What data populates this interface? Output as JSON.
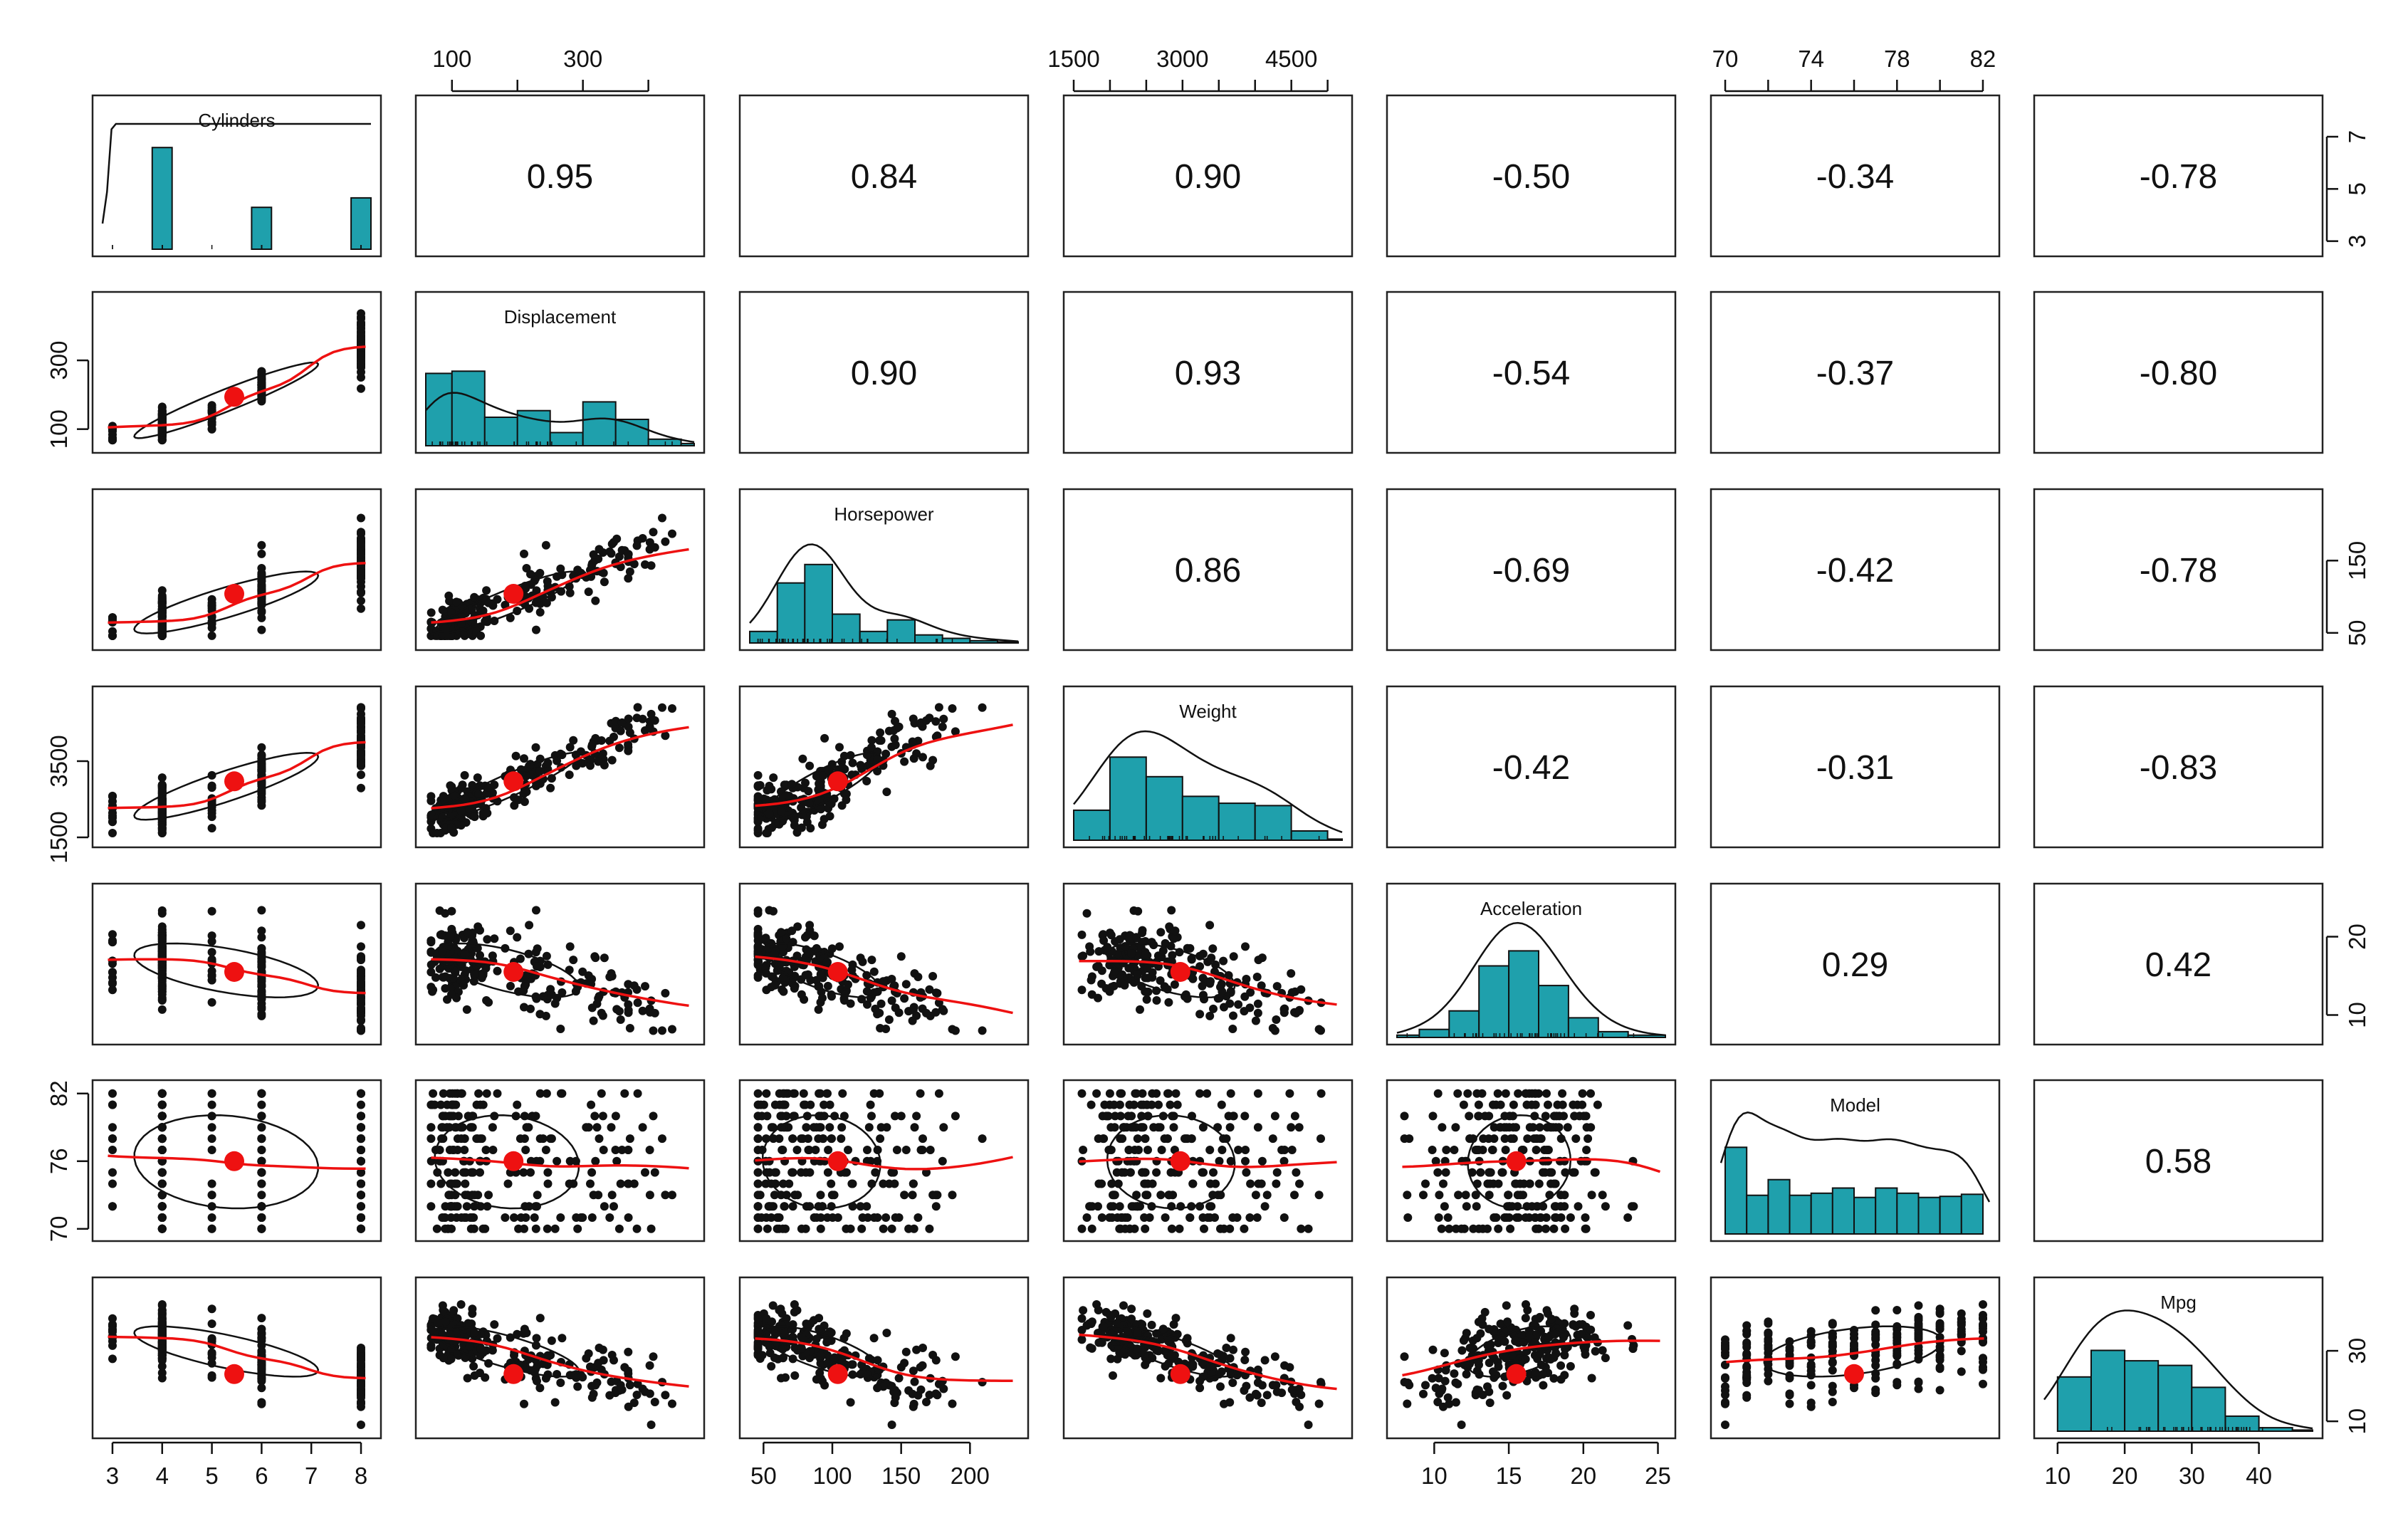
{
  "title": "",
  "colors": {
    "hist_fill": "#1fa0ac",
    "points": "#111111",
    "smooth": "#ee1111",
    "center": "#ee1111",
    "panel_border": "#222222"
  },
  "chart_data": {
    "type": "scatter",
    "variables": [
      "Cylinders",
      "Displacement",
      "Horsepower",
      "Weight",
      "Acceleration",
      "Model",
      "Mpg"
    ],
    "ranges": [
      [
        2.8,
        8.2
      ],
      [
        60,
        470
      ],
      [
        40,
        235
      ],
      [
        1500,
        5200
      ],
      [
        7.5,
        25.5
      ],
      [
        69.8,
        82.3
      ],
      [
        8,
        48
      ]
    ],
    "means": [
      5.45,
      194,
      104,
      2970,
      15.5,
      76.0,
      23.4
    ],
    "correlations": [
      [
        "",
        "0.95",
        "0.84",
        "0.90",
        "-0.50",
        "-0.34",
        "-0.78"
      ],
      [
        "",
        "",
        "0.90",
        "0.93",
        "-0.54",
        "-0.37",
        "-0.80"
      ],
      [
        "",
        "",
        "",
        "0.86",
        "-0.69",
        "-0.42",
        "-0.78"
      ],
      [
        "",
        "",
        "",
        "",
        "-0.42",
        "-0.31",
        "-0.83"
      ],
      [
        "",
        "",
        "",
        "",
        "",
        "0.29",
        "0.42"
      ],
      [
        "",
        "",
        "",
        "",
        "",
        "",
        "0.58"
      ],
      [
        "",
        "",
        "",
        "",
        "",
        "",
        ""
      ]
    ],
    "axes": {
      "top": [
        {
          "column": 1,
          "ticks": [
            100,
            300
          ],
          "minor": [
            100,
            200,
            300,
            400
          ]
        },
        {
          "column": 3,
          "ticks": [
            1500,
            3000,
            4500
          ],
          "minor": [
            1500,
            2000,
            2500,
            3000,
            3500,
            4000,
            4500,
            5000
          ]
        },
        {
          "column": 5,
          "ticks": [
            70,
            74,
            78,
            82
          ],
          "minor": [
            70,
            72,
            74,
            76,
            78,
            80,
            82
          ]
        }
      ],
      "bottom": [
        {
          "column": 0,
          "ticks": [
            3,
            4,
            5,
            6,
            7,
            8
          ]
        },
        {
          "column": 2,
          "ticks": [
            50,
            100,
            150,
            200
          ]
        },
        {
          "column": 4,
          "ticks": [
            10,
            15,
            20,
            25
          ]
        },
        {
          "column": 6,
          "ticks": [
            10,
            20,
            30,
            40
          ]
        }
      ],
      "left": [
        {
          "row": 1,
          "ticks": [
            100,
            300
          ]
        },
        {
          "row": 3,
          "ticks": [
            1500,
            3500
          ]
        },
        {
          "row": 5,
          "ticks": [
            70,
            76,
            82
          ]
        }
      ],
      "right": [
        {
          "row": 0,
          "ticks": [
            3,
            5,
            7
          ]
        },
        {
          "row": 2,
          "ticks": [
            50,
            150
          ]
        },
        {
          "row": 4,
          "ticks": [
            10,
            20
          ]
        },
        {
          "row": 6,
          "ticks": [
            10,
            30
          ]
        }
      ]
    },
    "histograms": [
      {
        "variable": "Cylinders",
        "bins": [
          [
            3.8,
            4.2,
            204
          ],
          [
            5.8,
            6.2,
            84
          ],
          [
            7.8,
            8.2,
            103
          ]
        ],
        "count_max": 220,
        "density_max": 3.2
      },
      {
        "variable": "Displacement",
        "bins": [
          [
            60,
            100,
            0.33
          ],
          [
            100,
            150,
            0.34
          ],
          [
            150,
            200,
            0.13
          ],
          [
            200,
            250,
            0.16
          ],
          [
            250,
            300,
            0.06
          ],
          [
            300,
            350,
            0.2
          ],
          [
            350,
            400,
            0.12
          ],
          [
            400,
            450,
            0.03
          ],
          [
            450,
            470,
            0.01
          ]
        ],
        "count_max": 0.5,
        "density_max": 1.2
      },
      {
        "variable": "Horsepower",
        "bins": [
          [
            40,
            60,
            0.1
          ],
          [
            60,
            80,
            0.52
          ],
          [
            80,
            100,
            0.68
          ],
          [
            100,
            120,
            0.25
          ],
          [
            120,
            140,
            0.1
          ],
          [
            140,
            160,
            0.2
          ],
          [
            160,
            180,
            0.07
          ],
          [
            180,
            200,
            0.04
          ],
          [
            200,
            220,
            0.02
          ],
          [
            220,
            235,
            0.01
          ]
        ],
        "count_max": 0.95,
        "density_max": 1.2
      },
      {
        "variable": "Weight",
        "bins": [
          [
            1500,
            2000,
            0.26
          ],
          [
            2000,
            2500,
            0.72
          ],
          [
            2500,
            3000,
            0.55
          ],
          [
            3000,
            3500,
            0.38
          ],
          [
            3500,
            4000,
            0.32
          ],
          [
            4000,
            4500,
            0.3
          ],
          [
            4500,
            5000,
            0.08
          ],
          [
            5000,
            5200,
            0.01
          ]
        ],
        "count_max": 0.95,
        "density_max": 1.2
      },
      {
        "variable": "Acceleration",
        "bins": [
          [
            7.5,
            9,
            0.02
          ],
          [
            9,
            11,
            0.07
          ],
          [
            11,
            13,
            0.23
          ],
          [
            13,
            15,
            0.62
          ],
          [
            15,
            17,
            0.75
          ],
          [
            17,
            19,
            0.45
          ],
          [
            19,
            21,
            0.17
          ],
          [
            21,
            23,
            0.05
          ],
          [
            23,
            25.5,
            0.02
          ]
        ],
        "count_max": 0.95,
        "density_max": 1.25
      },
      {
        "variable": "Model",
        "bins": [
          [
            70,
            71,
            0.83
          ],
          [
            71,
            72,
            0.37
          ],
          [
            72,
            73,
            0.52
          ],
          [
            73,
            74,
            0.37
          ],
          [
            74,
            75,
            0.39
          ],
          [
            75,
            76,
            0.44
          ],
          [
            76,
            77,
            0.35
          ],
          [
            77,
            78,
            0.44
          ],
          [
            78,
            79,
            0.39
          ],
          [
            79,
            80,
            0.35
          ],
          [
            80,
            81,
            0.36
          ],
          [
            81,
            82,
            0.38
          ]
        ],
        "count_max": 1.05,
        "density_max": 1.0
      },
      {
        "variable": "Mpg",
        "bins": [
          [
            10,
            15,
            0.47
          ],
          [
            15,
            20,
            0.7
          ],
          [
            20,
            25,
            0.61
          ],
          [
            25,
            30,
            0.57
          ],
          [
            30,
            35,
            0.38
          ],
          [
            35,
            40,
            0.13
          ],
          [
            40,
            45,
            0.03
          ],
          [
            45,
            48,
            0.01
          ]
        ],
        "count_max": 0.95,
        "density_max": 1.2
      }
    ]
  }
}
